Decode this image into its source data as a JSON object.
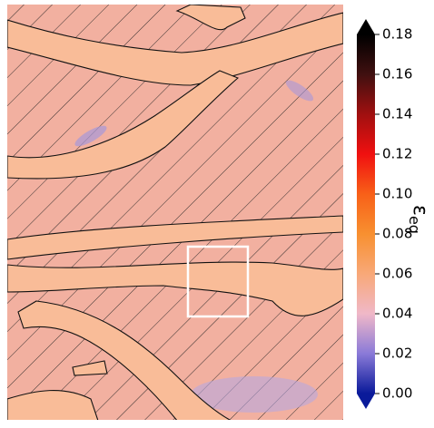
{
  "chart_data": {
    "type": "heatmap",
    "colorbar": {
      "clim": [
        0,
        0.18
      ],
      "extend": "both",
      "colormap": [
        "#0a1a9a",
        "#8a7ad8",
        "#f0b8c8",
        "#f8a878",
        "#f89030",
        "#f86018",
        "#f01010",
        "#a01010",
        "#401010",
        "#000000"
      ],
      "ticks": [
        {
          "value": 0,
          "label": "0.00"
        },
        {
          "value": 0.02,
          "label": "0.02"
        },
        {
          "value": 0.04,
          "label": "0.04"
        },
        {
          "value": 0.06,
          "label": "0.06"
        },
        {
          "value": 0.08,
          "label": "0.08"
        },
        {
          "value": 0.1,
          "label": "0.10"
        },
        {
          "value": 0.12,
          "label": "0.12"
        },
        {
          "value": 0.14,
          "label": "0.14"
        },
        {
          "value": 0.16,
          "label": "0.16"
        },
        {
          "value": 0.18,
          "label": "0.18"
        }
      ],
      "label": "ε",
      "label_subscript": "eq"
    }
  }
}
